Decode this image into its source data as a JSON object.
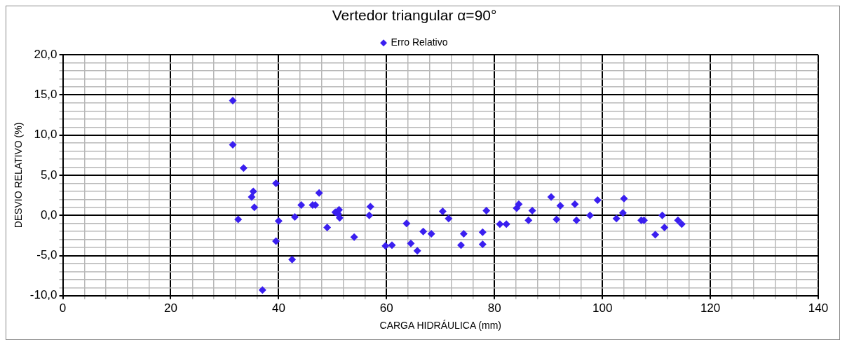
{
  "chart_data": {
    "type": "scatter",
    "title": "Vertedor triangular α=90°",
    "xlabel": "CARGA HIDRÁULICA (mm)",
    "ylabel": "DESVIO RELATIVO (%)",
    "x": [
      31.5,
      31.5,
      32.5,
      33.5,
      35.0,
      35.3,
      35.5,
      37.0,
      39.5,
      39.5,
      40.0,
      42.5,
      43.0,
      44.2,
      46.3,
      46.8,
      47.5,
      49.0,
      50.5,
      51.0,
      51.2,
      51.3,
      54.0,
      56.8,
      57.0,
      59.8,
      61.0,
      63.7,
      64.5,
      65.7,
      66.8,
      68.3,
      70.4,
      71.5,
      73.8,
      74.3,
      77.8,
      77.8,
      78.5,
      81.0,
      82.2,
      84.1,
      84.5,
      86.3,
      87.0,
      90.5,
      91.5,
      92.2,
      94.9,
      95.2,
      97.7,
      99.1,
      102.6,
      103.8,
      104.0,
      107.2,
      107.7,
      109.8,
      111.1,
      111.5,
      114.0,
      114.7
    ],
    "series": [
      {
        "name": "Erro Relativo",
        "color": "#3a1ff0",
        "values": [
          14.3,
          8.8,
          -0.5,
          5.9,
          2.3,
          3.0,
          1.0,
          -9.3,
          4.0,
          -3.2,
          -0.7,
          -5.5,
          -0.2,
          1.3,
          1.3,
          1.3,
          2.8,
          -1.5,
          0.4,
          0.2,
          0.7,
          -0.3,
          -2.7,
          0.0,
          1.1,
          -3.8,
          -3.7,
          -1.0,
          -3.5,
          -4.4,
          -2.0,
          -2.3,
          0.5,
          -0.4,
          -3.7,
          -2.3,
          -2.1,
          -3.6,
          0.6,
          -1.1,
          -1.1,
          0.9,
          1.4,
          -0.6,
          0.6,
          2.3,
          -0.5,
          1.2,
          1.4,
          -0.6,
          0.0,
          1.9,
          -0.4,
          0.3,
          2.1,
          -0.6,
          -0.6,
          -2.4,
          0.0,
          -1.5,
          -0.6,
          -1.1
        ]
      }
    ],
    "xlim": [
      0,
      140
    ],
    "xticks": [
      0,
      {
        "value": 4,
        "label": null
      },
      {
        "value": 8,
        "label": null
      },
      {
        "value": 12,
        "label": null
      },
      {
        "value": 16,
        "label": null
      },
      20,
      {
        "value": 24,
        "label": null
      },
      {
        "value": 28,
        "label": null
      },
      {
        "value": 32,
        "label": null
      },
      {
        "value": 36,
        "label": null
      },
      40,
      {
        "value": 44,
        "label": null
      },
      {
        "value": 48,
        "label": null
      },
      {
        "value": 52,
        "label": null
      },
      {
        "value": 56,
        "label": null
      },
      60,
      {
        "value": 64,
        "label": null
      },
      {
        "value": 68,
        "label": null
      },
      {
        "value": 72,
        "label": null
      },
      {
        "value": 76,
        "label": null
      },
      80,
      {
        "value": 84,
        "label": null
      },
      {
        "value": 88,
        "label": null
      },
      {
        "value": 92,
        "label": null
      },
      {
        "value": 96,
        "label": null
      },
      100,
      {
        "value": 104,
        "label": null
      },
      {
        "value": 108,
        "label": null
      },
      {
        "value": 112,
        "label": null
      },
      {
        "value": 116,
        "label": null
      },
      120,
      {
        "value": 124,
        "label": null
      },
      {
        "value": 128,
        "label": null
      },
      {
        "value": 132,
        "label": null
      },
      {
        "value": 136,
        "label": null
      },
      140
    ],
    "ylim": [
      -10,
      20
    ],
    "yticks": [
      {
        "value": -10,
        "label": "-10,0"
      },
      {
        "value": -9,
        "label": null
      },
      {
        "value": -8,
        "label": null
      },
      {
        "value": -7,
        "label": null
      },
      {
        "value": -6,
        "label": null
      },
      {
        "value": -5,
        "label": "-5,0"
      },
      {
        "value": -4,
        "label": null
      },
      {
        "value": -3,
        "label": null
      },
      {
        "value": -2,
        "label": null
      },
      {
        "value": -1,
        "label": null
      },
      {
        "value": 0,
        "label": "0,0"
      },
      {
        "value": 1,
        "label": null
      },
      {
        "value": 2,
        "label": null
      },
      {
        "value": 3,
        "label": null
      },
      {
        "value": 4,
        "label": null
      },
      {
        "value": 5,
        "label": "5,0"
      },
      {
        "value": 6,
        "label": null
      },
      {
        "value": 7,
        "label": null
      },
      {
        "value": 8,
        "label": null
      },
      {
        "value": 9,
        "label": null
      },
      {
        "value": 10,
        "label": "10,0"
      },
      {
        "value": 11,
        "label": null
      },
      {
        "value": 12,
        "label": null
      },
      {
        "value": 13,
        "label": null
      },
      {
        "value": 14,
        "label": null
      },
      {
        "value": 15,
        "label": "15,0"
      },
      {
        "value": 16,
        "label": null
      },
      {
        "value": 17,
        "label": null
      },
      {
        "value": 18,
        "label": null
      },
      {
        "value": 19,
        "label": null
      },
      {
        "value": 20,
        "label": "20,0"
      }
    ],
    "grid": true,
    "legend": "top",
    "marker": "diamond"
  }
}
